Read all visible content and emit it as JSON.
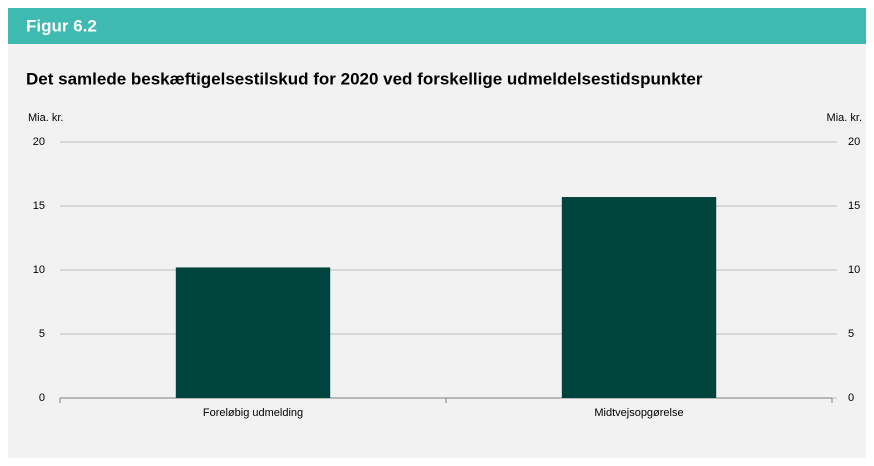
{
  "figure_label": "Figur 6.2",
  "chart_data": {
    "type": "bar",
    "title": "Det samlede beskæftigelsestilskud for 2020 ved forskellige udmeldelsestidspunkter",
    "y_label": "Mia. kr.",
    "y2_label": "Mia. kr.",
    "categories": [
      "Foreløbig udmelding",
      "Midtvejsopgørelse"
    ],
    "values": [
      10.2,
      15.7
    ],
    "color": "#00443e",
    "ylim": [
      0,
      20
    ],
    "yticks": [
      0,
      5,
      10,
      15,
      20
    ],
    "y2lim": [
      0,
      20
    ],
    "y2ticks": [
      0,
      5,
      10,
      15,
      20
    ],
    "grid": true
  }
}
